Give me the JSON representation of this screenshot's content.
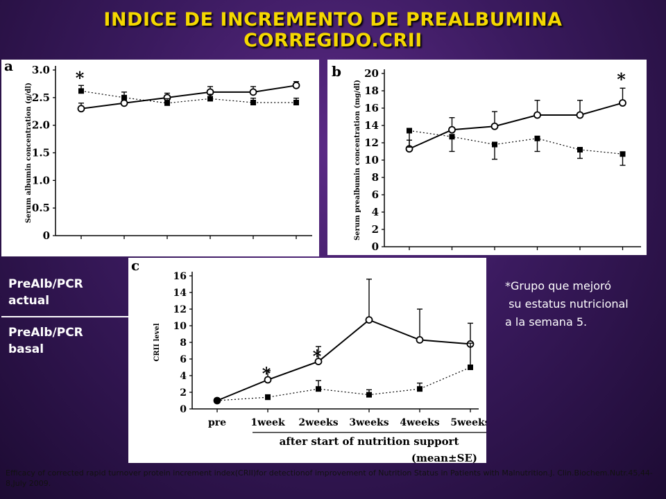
{
  "slide": {
    "title_line1": "INDICE DE INCREMENTO DE PREALBUMINA",
    "title_line2": "CORREGIDO.CRII",
    "ratio_numerator": "PreAlb/PCR actual",
    "ratio_denominator": "PreAlb/PCR basal",
    "note": "*Grupo que mejoró\n su estatus nutricional\na la semana 5.",
    "citation": "Efficacy of corrected rapid turnover protein increment index(CRII)for detectionof improvement of Nutrition Status in Patients with Malnutrition.J. Clin.Biochem.Nutr.45,44-8,July 2009."
  },
  "colors": {
    "title": "#f5d800",
    "background": "#3a1a5e",
    "panel": "#ffffff"
  },
  "chart_data": [
    {
      "type": "line",
      "panel_label": "a",
      "ylabel": "Serum albumin concentration (g/dl)",
      "ylim": [
        0,
        3.0
      ],
      "yticks": [
        "0",
        "0.5",
        "1.0",
        "1.5",
        "2.0",
        "2.5",
        "3.0"
      ],
      "ytick_values": [
        0,
        0.5,
        1.0,
        1.5,
        2.0,
        2.5,
        3.0
      ],
      "x": [
        0,
        1,
        2,
        3,
        4,
        5
      ],
      "series": [
        {
          "marker": "open-circle",
          "style": "solid",
          "values": [
            2.3,
            2.4,
            2.5,
            2.6,
            2.6,
            2.72
          ],
          "err": [
            0.1,
            0.1,
            0.08,
            0.1,
            0.1,
            0.07
          ]
        },
        {
          "marker": "filled-square",
          "style": "dotted",
          "values": [
            2.62,
            2.5,
            2.4,
            2.48,
            2.41,
            2.41
          ],
          "err": [
            0.1,
            0.1,
            0.08,
            0.08,
            0.08,
            0.08
          ]
        }
      ],
      "annotations": [
        {
          "text": "*",
          "x": 0,
          "y": 2.85
        }
      ]
    },
    {
      "type": "line",
      "panel_label": "b",
      "ylabel": "Serum prealbumin concentration (mg/dl)",
      "ylim": [
        0,
        20
      ],
      "yticks": [
        "0",
        "2",
        "4",
        "6",
        "8",
        "10",
        "12",
        "14",
        "16",
        "18",
        "20"
      ],
      "ytick_values": [
        0,
        2,
        4,
        6,
        8,
        10,
        12,
        14,
        16,
        18,
        20
      ],
      "x": [
        0,
        1,
        2,
        3,
        4,
        5
      ],
      "series": [
        {
          "marker": "open-circle",
          "style": "solid",
          "values": [
            11.3,
            13.5,
            13.9,
            15.2,
            15.2,
            16.6
          ],
          "err": [
            1.0,
            1.4,
            1.7,
            1.7,
            1.7,
            1.7
          ]
        },
        {
          "marker": "filled-square",
          "style": "dotted",
          "values": [
            13.4,
            12.7,
            11.8,
            12.5,
            11.2,
            10.7
          ],
          "err": [
            1.9,
            1.7,
            1.7,
            1.5,
            1.0,
            1.3
          ]
        }
      ],
      "annotations": [
        {
          "text": "*",
          "x": 5,
          "y": 19.3
        }
      ]
    },
    {
      "type": "line",
      "panel_label": "c",
      "ylabel": "CRII level",
      "xlabel": "after start of nutrition support",
      "ylim": [
        0,
        16
      ],
      "yticks": [
        "0",
        "2",
        "4",
        "6",
        "8",
        "10",
        "12",
        "14",
        "16"
      ],
      "ytick_values": [
        0,
        2,
        4,
        6,
        8,
        10,
        12,
        14,
        16
      ],
      "categories": [
        "pre",
        "1week",
        "2weeks",
        "3weeks",
        "4weeks",
        "5weeks"
      ],
      "series": [
        {
          "marker": "open-circle",
          "style": "solid",
          "values": [
            1.0,
            3.5,
            5.7,
            10.7,
            8.3,
            7.8
          ],
          "err": [
            0,
            1.1,
            1.8,
            4.9,
            3.7,
            2.5
          ]
        },
        {
          "marker": "filled-square",
          "style": "dotted",
          "values": [
            1.0,
            1.4,
            2.4,
            1.7,
            2.4,
            5.0
          ],
          "err": [
            0,
            0.3,
            1.0,
            0.6,
            0.7,
            2.9
          ]
        }
      ],
      "annotations": [
        {
          "text": "*",
          "x": 1,
          "y": 4.2
        },
        {
          "text": "*",
          "x": 2,
          "y": 6.3
        }
      ],
      "footnote": "(mean±SE)"
    }
  ]
}
